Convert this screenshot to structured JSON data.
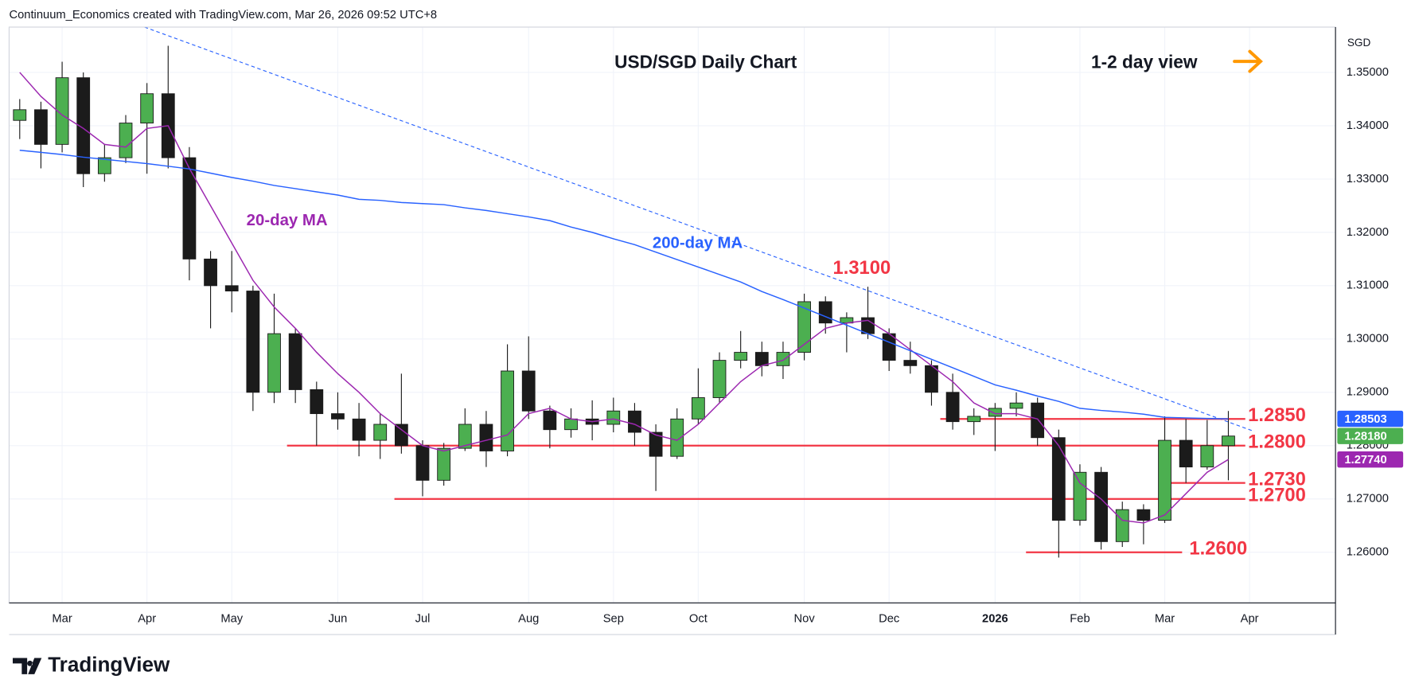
{
  "header": "Continuum_Economics created with TradingView.com, Mar 26, 2026 09:52 UTC+8",
  "footer": "TradingView",
  "chart_data": {
    "type": "candlestick",
    "title": "USD/SGD Daily Chart",
    "subtitle": "1-2 day view",
    "currency": "SGD",
    "categories": [
      null,
      null,
      "Mar",
      null,
      null,
      null,
      "Apr",
      null,
      null,
      null,
      "May",
      null,
      null,
      null,
      null,
      "Jun",
      null,
      null,
      null,
      "Jul",
      null,
      null,
      null,
      null,
      "Aug",
      null,
      null,
      null,
      "Sep",
      null,
      null,
      null,
      "Oct",
      null,
      null,
      null,
      null,
      "Nov",
      null,
      null,
      null,
      "Dec",
      null,
      null,
      null,
      null,
      "2026",
      null,
      null,
      null,
      "Feb",
      null,
      null,
      null,
      "Mar",
      null,
      null,
      null,
      "Apr"
    ],
    "open": [
      1.341,
      1.343,
      1.3365,
      1.349,
      1.331,
      1.334,
      1.3405,
      1.346,
      1.334,
      1.315,
      1.31,
      1.309,
      1.29,
      1.301,
      1.2905,
      1.286,
      1.285,
      1.281,
      1.284,
      1.28,
      1.2735,
      1.2795,
      1.284,
      1.279,
      1.294,
      1.2865,
      1.283,
      1.285,
      1.284,
      1.2865,
      1.2825,
      1.278,
      1.285,
      1.289,
      1.296,
      1.2975,
      1.295,
      1.2975,
      1.307,
      1.303,
      1.304,
      1.301,
      1.296,
      1.295,
      1.29,
      1.2845,
      1.2855,
      1.287,
      1.288,
      1.2815,
      1.266,
      1.275,
      1.262,
      1.268,
      1.266,
      1.281,
      1.276,
      1.28,
      null
    ],
    "high": [
      1.345,
      1.3445,
      1.352,
      1.35,
      1.3365,
      1.342,
      1.348,
      1.355,
      1.336,
      1.3165,
      1.3165,
      1.31,
      1.3085,
      1.302,
      1.292,
      1.29,
      1.288,
      1.286,
      1.2935,
      1.281,
      1.2805,
      1.287,
      1.2865,
      1.299,
      1.3005,
      1.2875,
      1.287,
      1.2885,
      1.289,
      1.288,
      1.284,
      1.287,
      1.2945,
      1.2975,
      1.3015,
      1.2995,
      1.2995,
      1.3085,
      1.308,
      1.305,
      1.3098,
      1.302,
      1.2995,
      1.296,
      1.2935,
      1.287,
      1.288,
      1.29,
      1.289,
      1.283,
      1.2765,
      1.276,
      1.2695,
      1.269,
      1.2855,
      1.285,
      1.2848,
      1.2865,
      null
    ],
    "low": [
      1.3375,
      1.332,
      1.335,
      1.3285,
      1.3295,
      1.333,
      1.331,
      1.332,
      1.311,
      1.302,
      1.305,
      1.2865,
      1.288,
      1.288,
      1.28,
      1.283,
      1.278,
      1.2775,
      1.2785,
      1.2705,
      1.2725,
      1.279,
      1.276,
      1.278,
      1.285,
      1.2795,
      1.2815,
      1.281,
      1.2825,
      1.28,
      1.2715,
      1.2775,
      1.284,
      1.288,
      1.2945,
      1.293,
      1.2925,
      1.296,
      1.301,
      1.2975,
      1.3,
      1.294,
      1.2935,
      1.2875,
      1.283,
      1.282,
      1.279,
      1.2855,
      1.28,
      1.259,
      1.265,
      1.2605,
      1.261,
      1.2615,
      1.2655,
      1.273,
      1.2755,
      1.2735,
      null
    ],
    "close": [
      1.343,
      1.3365,
      1.349,
      1.331,
      1.334,
      1.3405,
      1.346,
      1.334,
      1.315,
      1.31,
      1.309,
      1.29,
      1.301,
      1.2905,
      1.286,
      1.285,
      1.281,
      1.284,
      1.28,
      1.2735,
      1.2795,
      1.284,
      1.279,
      1.294,
      1.2865,
      1.283,
      1.285,
      1.284,
      1.2865,
      1.2825,
      1.278,
      1.285,
      1.289,
      1.296,
      1.2975,
      1.295,
      1.2975,
      1.307,
      1.303,
      1.304,
      1.301,
      1.296,
      1.295,
      1.29,
      1.2845,
      1.2855,
      1.287,
      1.288,
      1.2815,
      1.266,
      1.275,
      1.262,
      1.268,
      1.266,
      1.281,
      1.276,
      1.28,
      1.2818,
      null
    ],
    "close_tag": {
      "value": 1.2818,
      "label": "1.28180",
      "color": "#4caf50"
    },
    "up_color": "#4caf50",
    "down_color": "#1b1b1b",
    "series": [
      {
        "name": "20-day MA",
        "color": "#9c27b0",
        "tag": {
          "value": 1.2774,
          "label": "1.27740"
        },
        "values": [
          1.35,
          1.3455,
          1.342,
          1.3395,
          1.3365,
          1.336,
          1.3395,
          1.34,
          1.332,
          1.325,
          1.318,
          1.311,
          1.306,
          1.302,
          1.2975,
          1.2935,
          1.29,
          1.286,
          1.283,
          1.28,
          1.279,
          1.28,
          1.281,
          1.282,
          1.286,
          1.287,
          1.285,
          1.2845,
          1.285,
          1.284,
          1.282,
          1.281,
          1.284,
          1.288,
          1.292,
          1.295,
          1.296,
          1.299,
          1.302,
          1.303,
          1.3035,
          1.301,
          1.298,
          1.295,
          1.292,
          1.288,
          1.286,
          1.286,
          1.285,
          1.28,
          1.273,
          1.27,
          1.266,
          1.2655,
          1.267,
          1.271,
          1.275,
          1.2774,
          null
        ]
      },
      {
        "name": "200-day MA",
        "color": "#2962ff",
        "tag": {
          "value": 1.28503,
          "label": "1.28503"
        },
        "values": [
          1.3354,
          1.335,
          1.3346,
          1.3341,
          1.3337,
          1.3333,
          1.3329,
          1.3324,
          1.3319,
          1.3311,
          1.3303,
          1.3296,
          1.3288,
          1.3282,
          1.3276,
          1.327,
          1.3262,
          1.326,
          1.3256,
          1.3254,
          1.3252,
          1.3246,
          1.3241,
          1.3235,
          1.3229,
          1.3222,
          1.321,
          1.32,
          1.3188,
          1.3177,
          1.3163,
          1.3149,
          1.3135,
          1.3121,
          1.3107,
          1.3089,
          1.3074,
          1.3058,
          1.3042,
          1.3026,
          1.301,
          1.2994,
          1.2978,
          1.2962,
          1.2946,
          1.293,
          1.2914,
          1.2904,
          1.2893,
          1.2883,
          1.287,
          1.2866,
          1.2863,
          1.2859,
          1.2853,
          1.2852,
          1.2851,
          1.28503,
          null
        ]
      }
    ],
    "levels": [
      {
        "value": 1.285,
        "label": "1.2850"
      },
      {
        "value": 1.28,
        "label": "1.2800"
      },
      {
        "value": 1.273,
        "label": "1.2730"
      },
      {
        "value": 1.27,
        "label": "1.2700"
      },
      {
        "value": 1.26,
        "label": "1.2600"
      }
    ],
    "level_color": "#f23645",
    "peak_label": "1.3100",
    "ylim": [
      1.2505,
      1.3585
    ],
    "yticks": [
      {
        "value": 1.26,
        "label": "1.26000"
      },
      {
        "value": 1.27,
        "label": "1.27000"
      },
      {
        "value": 1.28,
        "label": "1.28000"
      },
      {
        "value": 1.29,
        "label": "1.29000"
      },
      {
        "value": 1.3,
        "label": "1.30000"
      },
      {
        "value": 1.31,
        "label": "1.31000"
      },
      {
        "value": 1.32,
        "label": "1.32000"
      },
      {
        "value": 1.33,
        "label": "1.33000"
      },
      {
        "value": 1.34,
        "label": "1.34000"
      },
      {
        "value": 1.35,
        "label": "1.35000"
      }
    ],
    "grid": true
  }
}
